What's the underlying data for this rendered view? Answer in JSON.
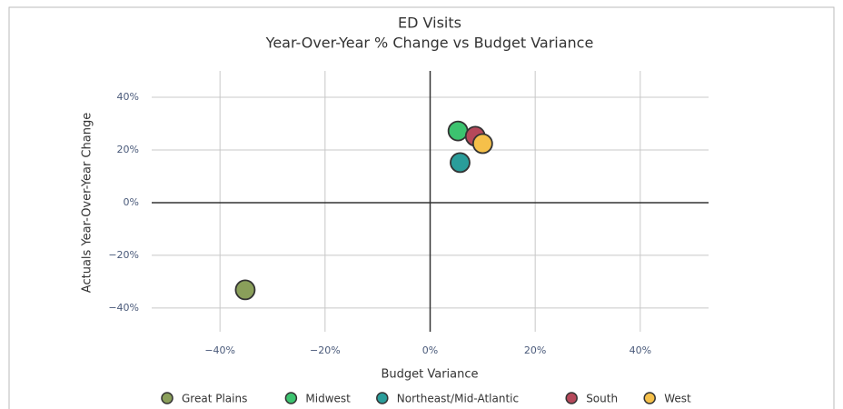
{
  "chart_data": {
    "type": "scatter",
    "title": "ED Visits",
    "subtitle": "Year-Over-Year % Change vs Budget Variance",
    "x_label": "Budget Variance",
    "y_label": "Actuals Year-Over-Year Change",
    "xlim": [
      -53,
      53
    ],
    "ylim": [
      -49,
      50
    ],
    "xticks": [
      {
        "value": -40,
        "label": "−40%"
      },
      {
        "value": -20,
        "label": "−20%"
      },
      {
        "value": 0,
        "label": "0%"
      },
      {
        "value": 20,
        "label": "20%"
      },
      {
        "value": 40,
        "label": "40%"
      }
    ],
    "yticks": [
      {
        "value": -40,
        "label": "−40%"
      },
      {
        "value": -20,
        "label": "−20%"
      },
      {
        "value": 0,
        "label": "0%"
      },
      {
        "value": 20,
        "label": "20%"
      },
      {
        "value": 40,
        "label": "40%"
      }
    ],
    "grid": true,
    "legend": "bottom",
    "series": [
      {
        "name": "Great Plains",
        "color": "#8a9f5a",
        "x": [
          -35.2
        ],
        "values": [
          -33.1
        ]
      },
      {
        "name": "Midwest",
        "color": "#3cc36f",
        "x": [
          5.3
        ],
        "values": [
          27.2
        ]
      },
      {
        "name": "Northeast/Mid-Atlantic",
        "color": "#2a9d9a",
        "x": [
          5.7
        ],
        "values": [
          15.2
        ]
      },
      {
        "name": "South",
        "color": "#b5485a",
        "x": [
          8.6
        ],
        "values": [
          25.2
        ]
      },
      {
        "name": "West",
        "color": "#f5c04a",
        "x": [
          10
        ],
        "values": [
          22.4
        ]
      }
    ]
  }
}
